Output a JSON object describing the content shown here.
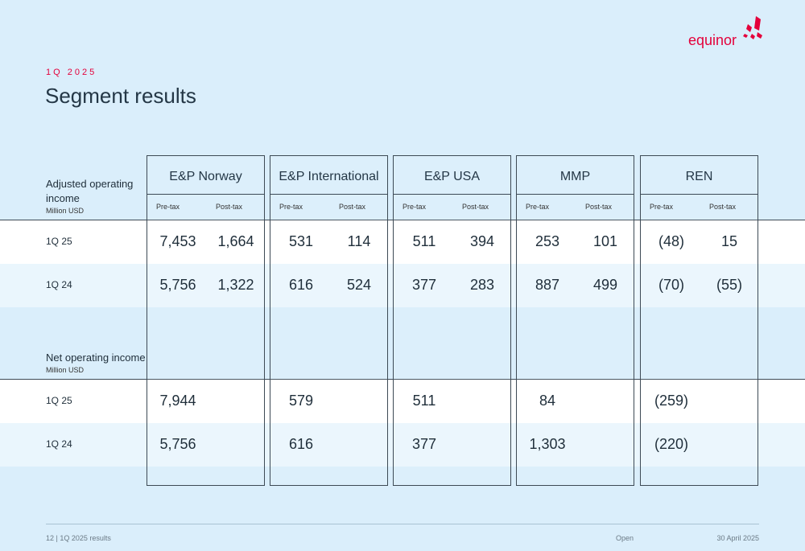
{
  "period_label": "1Q 2025",
  "page_title": "Segment results",
  "brand": "equinor",
  "columns": [
    {
      "name": "E&P Norway",
      "pre": "Pre-tax",
      "post": "Post-tax"
    },
    {
      "name": "E&P International",
      "pre": "Pre-tax",
      "post": "Post-tax"
    },
    {
      "name": "E&P USA",
      "pre": "Pre-tax",
      "post": "Post-tax"
    },
    {
      "name": "MMP",
      "pre": "Pre-tax",
      "post": "Post-tax"
    },
    {
      "name": "REN",
      "pre": "Pre-tax",
      "post": "Post-tax"
    }
  ],
  "adjusted": {
    "label_line1": "Adjusted operating",
    "label_line2": "income",
    "unit": "Million USD",
    "rows": [
      {
        "label": "1Q 25",
        "values": [
          [
            "7,453",
            "1,664"
          ],
          [
            "531",
            "114"
          ],
          [
            "511",
            "394"
          ],
          [
            "253",
            "101"
          ],
          [
            "(48)",
            "15"
          ]
        ]
      },
      {
        "label": "1Q 24",
        "values": [
          [
            "5,756",
            "1,322"
          ],
          [
            "616",
            "524"
          ],
          [
            "377",
            "283"
          ],
          [
            "887",
            "499"
          ],
          [
            "(70)",
            "(55)"
          ]
        ]
      }
    ]
  },
  "net": {
    "label": "Net operating income",
    "unit": "Million USD",
    "rows": [
      {
        "label": "1Q 25",
        "values": [
          "7,944",
          "579",
          "511",
          "84",
          "(259)"
        ]
      },
      {
        "label": "1Q 24",
        "values": [
          "5,756",
          "616",
          "377",
          "1,303",
          "(220)"
        ]
      }
    ]
  },
  "footer": {
    "page": "12",
    "doc": "1Q 2025 results",
    "classification": "Open",
    "date": "30 April 2025"
  },
  "colors": {
    "accent": "#e4003b",
    "text": "#243746",
    "background": "#daeefb"
  }
}
